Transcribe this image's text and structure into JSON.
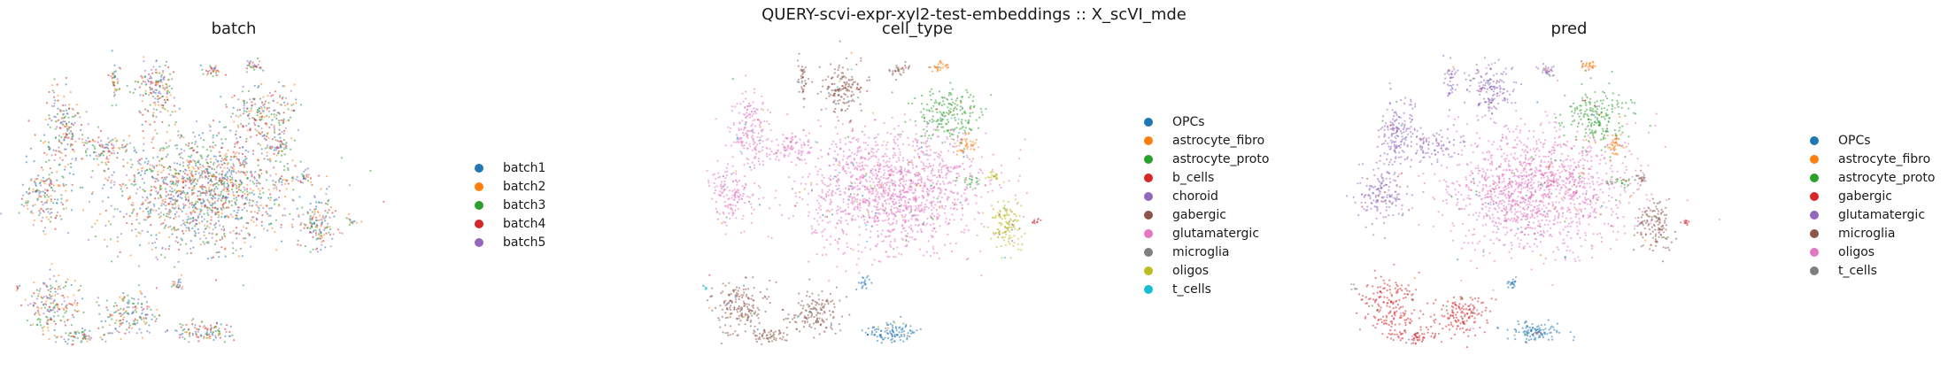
{
  "figure_title": "QUERY-scvi-expr-xyl2-test-embeddings :: X_scVI_mde",
  "chart_data": [
    {
      "type": "scatter",
      "title": "batch",
      "legend_placement": "right",
      "grid": false,
      "axes_visible": false,
      "series": [
        {
          "name": "batch1",
          "color": "#1f77b4"
        },
        {
          "name": "batch2",
          "color": "#ff7f0e"
        },
        {
          "name": "batch3",
          "color": "#2ca02c"
        },
        {
          "name": "batch4",
          "color": "#d62728"
        },
        {
          "name": "batch5",
          "color": "#9467bd"
        }
      ]
    },
    {
      "type": "scatter",
      "title": "cell_type",
      "legend_placement": "right",
      "grid": false,
      "axes_visible": false,
      "series": [
        {
          "name": "OPCs",
          "color": "#1f77b4"
        },
        {
          "name": "astrocyte_fibro",
          "color": "#ff7f0e"
        },
        {
          "name": "astrocyte_proto",
          "color": "#2ca02c"
        },
        {
          "name": "b_cells",
          "color": "#d62728"
        },
        {
          "name": "choroid",
          "color": "#9467bd"
        },
        {
          "name": "gabergic",
          "color": "#8c564b"
        },
        {
          "name": "glutamatergic",
          "color": "#e377c2"
        },
        {
          "name": "microglia",
          "color": "#7f7f7f"
        },
        {
          "name": "oligos",
          "color": "#bcbd22"
        },
        {
          "name": "t_cells",
          "color": "#17becf"
        }
      ]
    },
    {
      "type": "scatter",
      "title": "pred",
      "legend_placement": "right",
      "grid": false,
      "axes_visible": false,
      "series": [
        {
          "name": "OPCs",
          "color": "#1f77b4"
        },
        {
          "name": "astrocyte_fibro",
          "color": "#ff7f0e"
        },
        {
          "name": "astrocyte_proto",
          "color": "#2ca02c"
        },
        {
          "name": "gabergic",
          "color": "#d62728"
        },
        {
          "name": "glutamatergic",
          "color": "#9467bd"
        },
        {
          "name": "microglia",
          "color": "#8c564b"
        },
        {
          "name": "oligos",
          "color": "#e377c2"
        },
        {
          "name": "t_cells",
          "color": "#7f7f7f"
        }
      ]
    }
  ]
}
